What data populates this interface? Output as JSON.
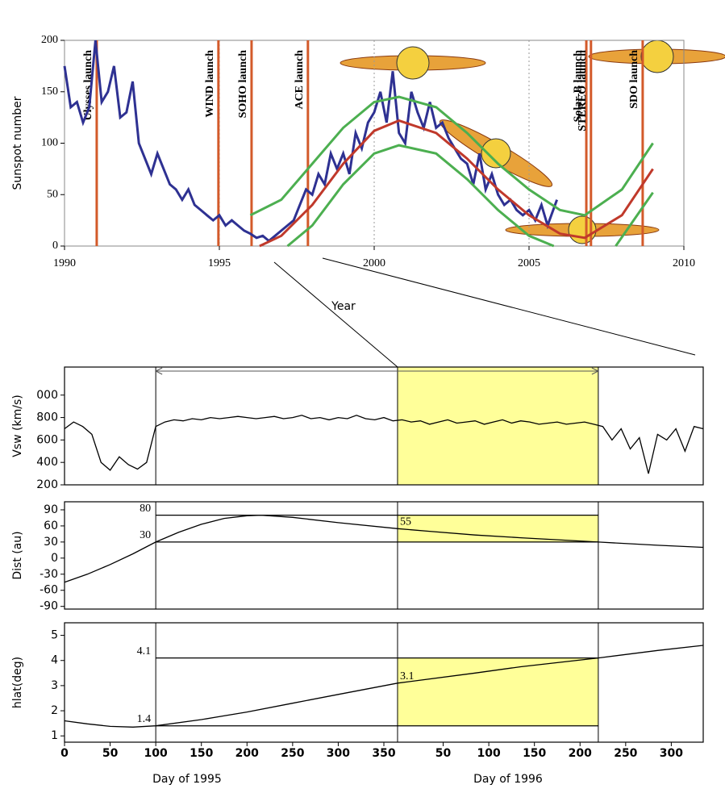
{
  "chart_data": [
    {
      "type": "line",
      "ylabel": "Sunspot number",
      "xlabel": "Year",
      "xlim": [
        1990,
        2010
      ],
      "ylim": [
        0,
        200
      ],
      "xticks": [
        1990,
        1995,
        2000,
        2005,
        2010
      ],
      "yticks": [
        0,
        50,
        100,
        150,
        200
      ],
      "grid": true,
      "series": [
        {
          "color": "#2e3192",
          "x": [
            1990.0,
            1990.2,
            1990.4,
            1990.6,
            1990.8,
            1991.0,
            1991.2,
            1991.4,
            1991.6,
            1991.8,
            1992.0,
            1992.2,
            1992.4,
            1992.6,
            1992.8,
            1993.0,
            1993.2,
            1993.4,
            1993.6,
            1993.8,
            1994.0,
            1994.2,
            1994.4,
            1994.6,
            1994.8,
            1995.0,
            1995.2,
            1995.4,
            1995.6,
            1995.8,
            1996.0,
            1996.2,
            1996.4,
            1996.6,
            1996.8,
            1997.0,
            1997.2,
            1997.4,
            1997.6,
            1997.8,
            1998.0,
            1998.2,
            1998.4,
            1998.6,
            1998.8,
            1999.0,
            1999.2,
            1999.4,
            1999.6,
            1999.8,
            2000.0,
            2000.2,
            2000.4,
            2000.6,
            2000.8,
            2001.0,
            2001.2,
            2001.4,
            2001.6,
            2001.8,
            2002.0,
            2002.2,
            2002.4,
            2002.6,
            2002.8,
            2003.0,
            2003.2,
            2003.4,
            2003.6,
            2003.8,
            2004.0,
            2004.2,
            2004.4,
            2004.6,
            2004.8,
            2005.0,
            2005.2,
            2005.4,
            2005.6,
            2005.9
          ],
          "values": [
            175,
            135,
            140,
            120,
            135,
            200,
            140,
            150,
            175,
            125,
            130,
            160,
            100,
            85,
            70,
            90,
            75,
            60,
            55,
            45,
            55,
            40,
            35,
            30,
            25,
            30,
            20,
            25,
            20,
            15,
            12,
            8,
            10,
            5,
            10,
            15,
            20,
            25,
            40,
            55,
            50,
            70,
            60,
            90,
            75,
            90,
            70,
            110,
            95,
            120,
            130,
            150,
            120,
            170,
            110,
            100,
            150,
            130,
            115,
            140,
            115,
            120,
            105,
            95,
            85,
            80,
            60,
            90,
            55,
            70,
            50,
            40,
            45,
            35,
            30,
            35,
            25,
            40,
            20,
            45
          ]
        },
        {
          "color": "#4caf50",
          "x": [
            1996,
            1997,
            1998,
            1999,
            2000,
            2000.8,
            2002,
            2003,
            2004,
            2005,
            2006,
            2006.8,
            2008,
            2009
          ],
          "values": [
            30,
            45,
            80,
            115,
            140,
            145,
            135,
            110,
            80,
            55,
            35,
            30,
            55,
            100
          ]
        },
        {
          "color": "#c0392b",
          "x": [
            1996.3,
            1997,
            1998,
            1999,
            2000,
            2000.8,
            2002,
            2003,
            2004,
            2005,
            2006,
            2006.8,
            2008,
            2009
          ],
          "values": [
            0,
            10,
            40,
            80,
            112,
            122,
            110,
            85,
            55,
            30,
            12,
            8,
            30,
            75
          ]
        },
        {
          "color": "#4caf50",
          "x": [
            1997.2,
            1998,
            1999,
            2000,
            2000.8,
            2002,
            2003,
            2004,
            2005,
            2005.8,
            2006.8,
            2007.8,
            2009
          ],
          "values": [
            0,
            20,
            60,
            90,
            98,
            90,
            65,
            35,
            10,
            0,
            null,
            0,
            52
          ]
        }
      ],
      "launches": [
        {
          "label": "Ulysses launch",
          "x": 1991.04
        },
        {
          "label": "WIND launch",
          "x": 1994.97
        },
        {
          "label": "SOHO launch",
          "x": 1996.04
        },
        {
          "label": "ACE launch",
          "x": 1997.86
        },
        {
          "label": "Solar-B launch",
          "x": 2006.85
        },
        {
          "label": "STEREO launch",
          "x": 2007.0
        },
        {
          "label": "SDO launch",
          "x": 2008.67
        }
      ],
      "launch_color": "#d35a2a"
    },
    {
      "type": "line",
      "ylabel": "Vsw (km/s)",
      "xlim": [
        0,
        700
      ],
      "ylim": [
        200,
        1250
      ],
      "yticks": [
        200,
        400,
        600,
        800,
        {
          "value": 1000,
          "label": "000"
        }
      ],
      "series": [
        {
          "color": "#000000",
          "x": [
            0,
            10,
            20,
            30,
            40,
            50,
            60,
            70,
            80,
            90,
            100,
            110,
            120,
            130,
            140,
            150,
            160,
            170,
            180,
            190,
            200,
            210,
            220,
            230,
            240,
            250,
            260,
            270,
            280,
            290,
            300,
            310,
            320,
            330,
            340,
            350,
            360,
            370,
            380,
            390,
            400,
            410,
            420,
            430,
            440,
            450,
            460,
            470,
            480,
            490,
            500,
            510,
            520,
            530,
            540,
            550,
            560,
            570,
            580,
            590,
            600,
            610,
            620,
            630,
            640,
            650,
            660,
            670,
            680,
            690,
            700
          ],
          "values": [
            700,
            760,
            720,
            650,
            400,
            330,
            450,
            380,
            340,
            400,
            720,
            760,
            780,
            770,
            790,
            780,
            800,
            790,
            800,
            810,
            800,
            790,
            800,
            810,
            790,
            800,
            820,
            790,
            800,
            780,
            800,
            790,
            820,
            790,
            780,
            800,
            770,
            780,
            760,
            770,
            740,
            760,
            780,
            750,
            760,
            770,
            740,
            760,
            780,
            750,
            770,
            760,
            740,
            750,
            760,
            740,
            750,
            760,
            740,
            720,
            600,
            700,
            520,
            620,
            300,
            650,
            600,
            700,
            500,
            720,
            700
          ]
        }
      ],
      "highlight": {
        "x": [
          365,
          585
        ],
        "color": "#ffff99"
      },
      "vlines": [
        100,
        365,
        585
      ],
      "arrow": [
        100,
        585
      ]
    },
    {
      "type": "line",
      "ylabel": "Dist (au)",
      "xlim": [
        0,
        700
      ],
      "ylim": [
        -95,
        105
      ],
      "yticks": [
        -90,
        -60,
        -30,
        0,
        30,
        60,
        90
      ],
      "series": [
        {
          "color": "#000000",
          "x": [
            0,
            25,
            50,
            75,
            100,
            125,
            150,
            175,
            200,
            215,
            250,
            300,
            365,
            400,
            450,
            500,
            585,
            650,
            700
          ],
          "values": [
            -45,
            -30,
            -12,
            8,
            30,
            48,
            63,
            74,
            79,
            80,
            76,
            66,
            55,
            50,
            43,
            38,
            30,
            24,
            20
          ]
        }
      ],
      "highlight": {
        "x": [
          365,
          585
        ],
        "y": [
          30,
          80
        ],
        "color": "#ffff99"
      },
      "vlines": [
        100,
        365,
        585
      ],
      "ref_lines": [
        80,
        30
      ],
      "ref_span": [
        100,
        585
      ],
      "points": [
        {
          "x": 365,
          "y": 55
        }
      ]
    },
    {
      "type": "line",
      "ylabel": "hlat(deg)",
      "xlim": [
        0,
        700
      ],
      "ylim": [
        0.75,
        5.5
      ],
      "yticks": [
        1,
        2,
        3,
        4,
        5
      ],
      "xticks": [
        0,
        50,
        100,
        150,
        200,
        250,
        300,
        350,
        {
          "value": 415,
          "label": "50"
        },
        {
          "value": 465,
          "label": "100"
        },
        {
          "value": 515,
          "label": "150"
        },
        {
          "value": 565,
          "label": "200"
        },
        {
          "value": 615,
          "label": "250"
        },
        {
          "value": 665,
          "label": "300"
        }
      ],
      "xlabel": [
        "Day of 1995",
        "Day of 1996"
      ],
      "series": [
        {
          "color": "#000000",
          "x": [
            0,
            25,
            50,
            75,
            100,
            150,
            200,
            250,
            300,
            365,
            450,
            500,
            585,
            650,
            700
          ],
          "values": [
            1.6,
            1.48,
            1.38,
            1.35,
            1.4,
            1.65,
            1.95,
            2.3,
            2.65,
            3.1,
            3.5,
            3.75,
            4.1,
            4.4,
            4.6
          ]
        }
      ],
      "highlight": {
        "x": [
          365,
          585
        ],
        "y": [
          1.4,
          4.1
        ],
        "color": "#ffff99"
      },
      "vlines": [
        100,
        365,
        585
      ],
      "ref_lines": [
        4.1,
        1.4
      ],
      "ref_span": [
        100,
        585
      ],
      "points": [
        {
          "x": 365,
          "y": 3.1
        }
      ]
    }
  ]
}
